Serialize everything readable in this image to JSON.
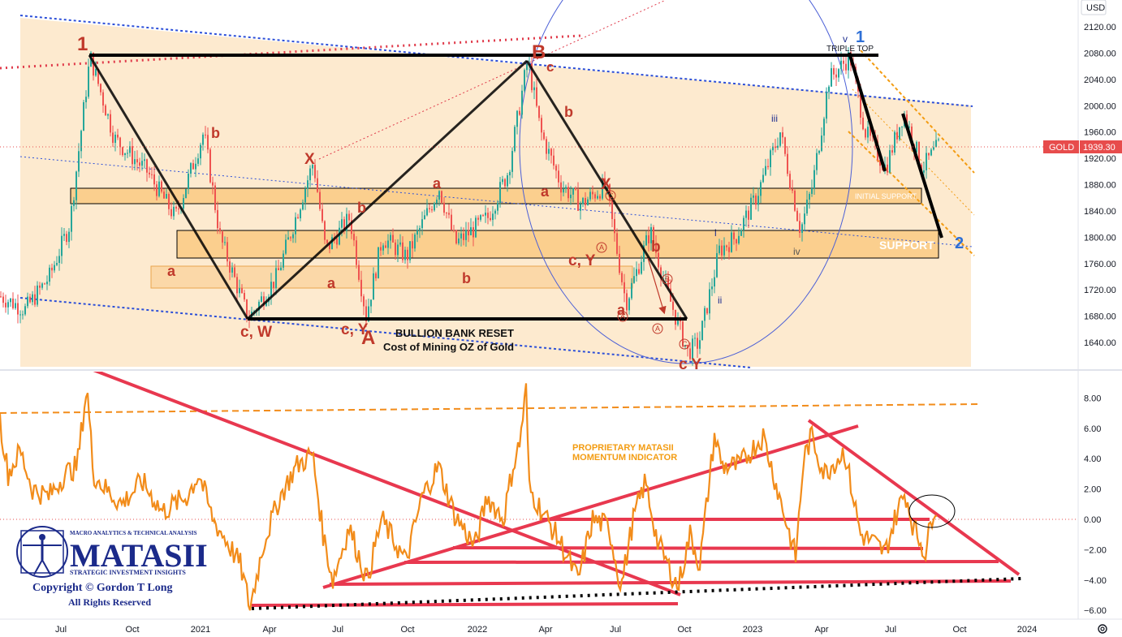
{
  "header": {
    "currency": "USD"
  },
  "symbol": {
    "name": "GOLD",
    "last_price": "1939.30"
  },
  "colors": {
    "price_band": "#fde9cc",
    "support_box": "#fbd8a8",
    "wave_label": "#c0392b",
    "wave_blue": "#2e6fd6",
    "trend_blue": "#2c4fd8",
    "trend_red": "#e03a4a",
    "momentum": "#f28c1a",
    "black_line": "#000000",
    "badge": "#e74c4c"
  },
  "chart_data": [
    {
      "type": "line",
      "title": "",
      "xlabel": "",
      "ylabel": "",
      "series": [
        {
          "name": "GOLD",
          "last": 1939.3
        }
      ],
      "x_ticks": [
        "Jul",
        "Oct",
        "2021",
        "Apr",
        "Jul",
        "Oct",
        "2022",
        "Apr",
        "Jul",
        "Oct",
        "2023",
        "Apr",
        "Jul",
        "Oct",
        "2024"
      ],
      "y_ticks": [
        1640,
        1680,
        1720,
        1760,
        1800,
        1840,
        1880,
        1920,
        1960,
        2000,
        2040,
        2080,
        2120
      ],
      "ylim": [
        1611,
        2148
      ],
      "key_points": [
        {
          "label": "1",
          "date": "2020-08",
          "price": 2075
        },
        {
          "label": "c, W",
          "date": "2021-03",
          "price": 1676
        },
        {
          "label": "c, Y A",
          "date": "2021-08",
          "price": 1680
        },
        {
          "label": "B c",
          "date": "2022-03",
          "price": 2070
        },
        {
          "label": "c Y",
          "date": "2022-09",
          "price": 1622
        },
        {
          "label": "v 1",
          "date": "2023-05",
          "price": 2080
        },
        {
          "label": "2",
          "date": "2023-09",
          "price": 1800
        }
      ],
      "annotations": {
        "triple_top": "TRIPLE TOP",
        "initial_support": "INITIAL SUPPORT",
        "support": "SUPPORT",
        "bullion_title": "BULLION BANK RESET",
        "bullion_sub": "Cost of Mining OZ of Gold",
        "wave_1": "1",
        "wave_B": "B",
        "wave_c_after_B": "c",
        "wave_A": "A",
        "cw": "c, W",
        "cy_left": "c, Y",
        "cy_mid": "c, Y",
        "cy_bottom": "c Y",
        "a": "a",
        "b": "b",
        "x": "X",
        "i": "i",
        "ii": "ii",
        "iii": "iii",
        "iv": "iv",
        "v": "v",
        "wave_1_blue": "1",
        "wave_2_blue": "2",
        "circ_A": "A",
        "circ_B": "B",
        "circ_C": "C"
      }
    },
    {
      "type": "line",
      "title": "",
      "series": [
        {
          "name": "",
          "last": 0.8
        }
      ],
      "y_ticks": [
        8.0,
        6.0,
        4.0,
        2.0,
        0.0,
        -2.0,
        -4.0,
        -6.0
      ],
      "ylim": [
        -6.6,
        9.2
      ],
      "dashed_level": 7.3,
      "zero_level": 0.0,
      "annotations": {
        "title1": "PROPRIETARY MATASII",
        "title2": "MOMENTUM INDICATOR"
      }
    }
  ],
  "logo": {
    "tagline_top": "MACRO ANALYTICS & TECHNICAL ANALYSIS",
    "brand": "MATASII",
    "tagline_bottom": "STRATEGIC INVESTMENT INSIGHTS",
    "copyright": "Copyright © Gordon T Long",
    "rights": "All Rights Reserved"
  },
  "icons": {
    "settings": "settings-gear-icon"
  }
}
